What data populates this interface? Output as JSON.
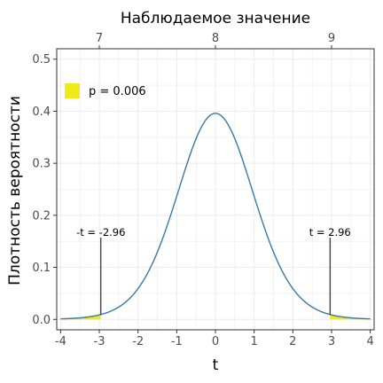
{
  "chart_data": {
    "type": "line",
    "top_axis_title": "Наблюдаемое значение",
    "top_axis_ticks": [
      "7",
      "8",
      "9"
    ],
    "xlabel": "t",
    "ylabel": "Плотность вероятности",
    "xlim": [
      -4.1,
      4.1
    ],
    "ylim": [
      -0.02,
      0.52
    ],
    "x_ticks": [
      -4,
      -3,
      -2,
      -1,
      0,
      1,
      2,
      3,
      4
    ],
    "x_tick_labels": [
      "-4",
      "-3",
      "-2",
      "-1",
      "0",
      "1",
      "2",
      "3",
      "4"
    ],
    "y_ticks": [
      0.0,
      0.1,
      0.2,
      0.3,
      0.4,
      0.5
    ],
    "y_tick_labels": [
      "0.0",
      "0.1",
      "0.2",
      "0.3",
      "0.4",
      "0.5"
    ],
    "grid": true,
    "curve": {
      "distribution": "t",
      "x_range": [
        -4,
        4
      ],
      "peak": 0.396,
      "color": "#3a78a6"
    },
    "shaded_tails": {
      "threshold": 2.96,
      "color": "#f0ea1a"
    },
    "legend": {
      "label": "p = 0.006",
      "color": "#f0ea1a",
      "position": "top-left"
    },
    "annotations": [
      {
        "x": -2.96,
        "label": "-t = -2.96"
      },
      {
        "x": 2.96,
        "label": "t = 2.96"
      }
    ]
  }
}
